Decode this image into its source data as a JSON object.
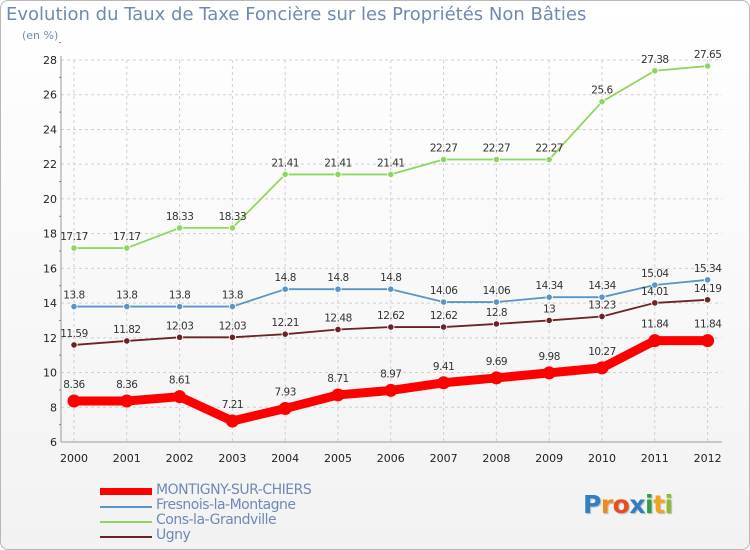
{
  "title": "Evolution du Taux de Taxe Foncière sur les Propriétés Non Bâties",
  "unit_label": "(en %)",
  "logo": {
    "letters": [
      "P",
      "r",
      "o",
      "x",
      "i",
      "t",
      "i"
    ],
    "colors": [
      "#2f7fc1",
      "#f08a1c",
      "#e84e1b",
      "#2f7fc1",
      "#2f9e44",
      "#f0a31c",
      "#8fbc2f"
    ]
  },
  "chart_data": {
    "type": "line",
    "title": "Evolution du Taux de Taxe Foncière sur les Propriétés Non Bâties",
    "ylabel": "(en %)",
    "xlabel": "",
    "x": [
      "2000",
      "2001",
      "2002",
      "2003",
      "2004",
      "2005",
      "2006",
      "2007",
      "2008",
      "2009",
      "2010",
      "2011",
      "2012"
    ],
    "ylim": [
      6,
      28
    ],
    "yticks": [
      6,
      8,
      10,
      12,
      14,
      16,
      18,
      20,
      22,
      24,
      26,
      28
    ],
    "grid": true,
    "legend_position": "bottom-left",
    "series": [
      {
        "name": "MONTIGNY-SUR-CHIERS",
        "color": "#ff0000",
        "bold": true,
        "values": [
          8.36,
          8.36,
          8.61,
          7.21,
          7.93,
          8.71,
          8.97,
          9.41,
          9.69,
          9.98,
          10.27,
          11.84,
          11.84
        ],
        "labels": [
          "8.36",
          "8.36",
          "8.61",
          "7.21",
          "7.93",
          "8.71",
          "8.97",
          "9.41",
          "9.69",
          "9.98",
          "10.27",
          "11.84",
          "11.84"
        ]
      },
      {
        "name": "Fresnois-la-Montagne",
        "color": "#5b95c8",
        "bold": false,
        "values": [
          13.8,
          13.8,
          13.8,
          13.8,
          14.8,
          14.8,
          14.8,
          14.06,
          14.06,
          14.34,
          14.34,
          15.04,
          15.34
        ],
        "labels": [
          "13.8",
          "13.8",
          "13.8",
          "13.8",
          "14.8",
          "14.8",
          "14.8",
          "14.06",
          "14.06",
          "14.34",
          "14.34",
          "15.04",
          "15.34"
        ]
      },
      {
        "name": "Cons-la-Grandville",
        "color": "#8fd65f",
        "bold": false,
        "values": [
          17.17,
          17.17,
          18.33,
          18.33,
          21.41,
          21.41,
          21.41,
          22.27,
          22.27,
          22.27,
          25.6,
          27.38,
          27.65
        ],
        "labels": [
          "17.17",
          "17.17",
          "18.33",
          "18.33",
          "21.41",
          "21.41",
          "21.41",
          "22.27",
          "22.27",
          "22.27",
          "25.6",
          "27.38",
          "27.65"
        ]
      },
      {
        "name": "Ugny",
        "color": "#6b2424",
        "bold": false,
        "values": [
          11.59,
          11.82,
          12.03,
          12.03,
          12.21,
          12.48,
          12.62,
          12.62,
          12.8,
          13,
          13.23,
          14.01,
          14.19
        ],
        "labels": [
          "11.59",
          "11.82",
          "12.03",
          "12.03",
          "12.21",
          "12.48",
          "12.62",
          "12.62",
          "12.8",
          "13",
          "13.23",
          "14.01",
          "14.19"
        ]
      }
    ]
  }
}
